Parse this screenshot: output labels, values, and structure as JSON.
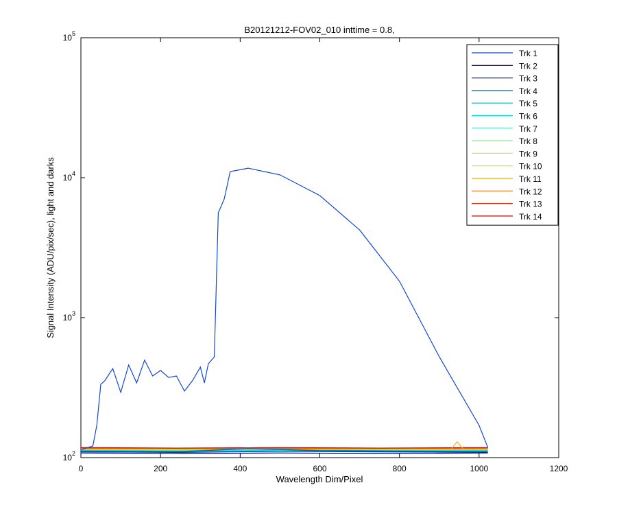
{
  "chart_data": {
    "type": "line",
    "title": "B20121212-FOV02_010 inttime = 0.8,",
    "xlabel": "Wavelength Dim/Pixel",
    "ylabel": "Signal Intensity (ADU/pix/sec), light and darks",
    "yscale": "log",
    "xlim": [
      0,
      1200
    ],
    "xticks": [
      0,
      200,
      400,
      600,
      800,
      1000,
      1200
    ],
    "ylim": [
      100,
      100000
    ],
    "yticks": [
      {
        "value": 100,
        "label": "10^2"
      },
      {
        "value": 1000,
        "label": "10^3"
      },
      {
        "value": 10000,
        "label": "10^4"
      },
      {
        "value": 100000,
        "label": "10^5"
      }
    ],
    "legend": "upper right",
    "series": [
      {
        "name": "Trk 1",
        "color": "#1046d0",
        "x": [
          0,
          30,
          40,
          50,
          60,
          80,
          100,
          120,
          140,
          160,
          180,
          200,
          220,
          240,
          260,
          280,
          300,
          310,
          320,
          335,
          345,
          360,
          375,
          400,
          420,
          500,
          600,
          700,
          800,
          900,
          1000,
          1022
        ],
        "values": [
          114,
          121,
          170,
          334,
          354,
          433,
          293,
          459,
          342,
          497,
          383,
          420,
          374,
          383,
          299,
          354,
          443,
          342,
          469,
          525,
          5620,
          7050,
          11070,
          11400,
          11700,
          10470,
          7460,
          4230,
          1820,
          525,
          170,
          118
        ]
      },
      {
        "name": "Trk 2",
        "color": "#000060",
        "x": [
          0,
          250,
          500,
          750,
          1022
        ],
        "values": [
          108,
          107,
          108,
          107,
          108
        ]
      },
      {
        "name": "Trk 3",
        "color": "#003a8c",
        "x": [
          0,
          250,
          500,
          750,
          1022
        ],
        "values": [
          110,
          109,
          111,
          110,
          109
        ]
      },
      {
        "name": "Trk 4",
        "color": "#00689c",
        "x": [
          0,
          250,
          420,
          600,
          1022
        ],
        "values": [
          111,
          110,
          116,
          112,
          110
        ]
      },
      {
        "name": "Trk 5",
        "color": "#00b4d8",
        "x": [
          0,
          250,
          420,
          600,
          1022
        ],
        "values": [
          112,
          111,
          117,
          113,
          111
        ]
      },
      {
        "name": "Trk 6",
        "color": "#00d6e6",
        "x": [
          0,
          250,
          500,
          750,
          1022
        ],
        "values": [
          112,
          111,
          112,
          111,
          112
        ]
      },
      {
        "name": "Trk 7",
        "color": "#40e4d4",
        "x": [
          0,
          250,
          500,
          750,
          1022
        ],
        "values": [
          113,
          112,
          113,
          112,
          113
        ]
      },
      {
        "name": "Trk 8",
        "color": "#86e492",
        "x": [
          0,
          250,
          500,
          750,
          1022
        ],
        "values": [
          113,
          113,
          113,
          113,
          113
        ]
      },
      {
        "name": "Trk 9",
        "color": "#c4e45c",
        "x": [
          0,
          250,
          500,
          750,
          1022
        ],
        "values": [
          114,
          113,
          114,
          113,
          114
        ]
      },
      {
        "name": "Trk 10",
        "color": "#e6e01c",
        "x": [
          0,
          250,
          500,
          750,
          1022
        ],
        "values": [
          114,
          114,
          114,
          114,
          114
        ]
      },
      {
        "name": "Trk 11",
        "color": "#f0b000",
        "x": [
          0,
          500,
          930,
          945,
          960,
          1022
        ],
        "values": [
          115,
          115,
          115,
          130,
          115,
          115
        ]
      },
      {
        "name": "Trk 12",
        "color": "#f07020",
        "x": [
          0,
          250,
          500,
          750,
          1022
        ],
        "values": [
          116,
          115,
          116,
          115,
          116
        ]
      },
      {
        "name": "Trk 13",
        "color": "#e03010",
        "x": [
          0,
          250,
          500,
          750,
          1022
        ],
        "values": [
          117,
          116,
          117,
          116,
          117
        ]
      },
      {
        "name": "Trk 14",
        "color": "#c00000",
        "x": [
          0,
          250,
          500,
          750,
          1022
        ],
        "values": [
          118,
          117,
          118,
          117,
          118
        ]
      }
    ]
  }
}
